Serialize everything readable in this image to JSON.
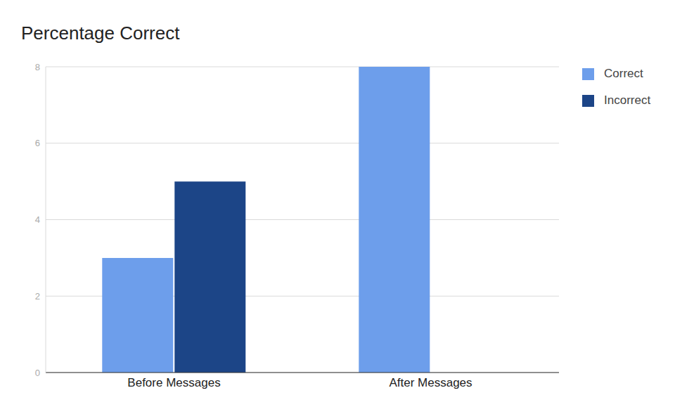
{
  "chart_data": {
    "type": "bar",
    "title": "Percentage Correct",
    "categories": [
      "Before Messages",
      "After Messages"
    ],
    "series": [
      {
        "name": "Correct",
        "color": "#6d9eeb",
        "values": [
          3,
          8
        ]
      },
      {
        "name": "Incorrect",
        "color": "#1c4587",
        "values": [
          5,
          0
        ]
      }
    ],
    "ylim": [
      0,
      8
    ],
    "yticks": [
      0,
      2,
      4,
      6,
      8
    ],
    "grid": true,
    "legend": "top-right"
  }
}
